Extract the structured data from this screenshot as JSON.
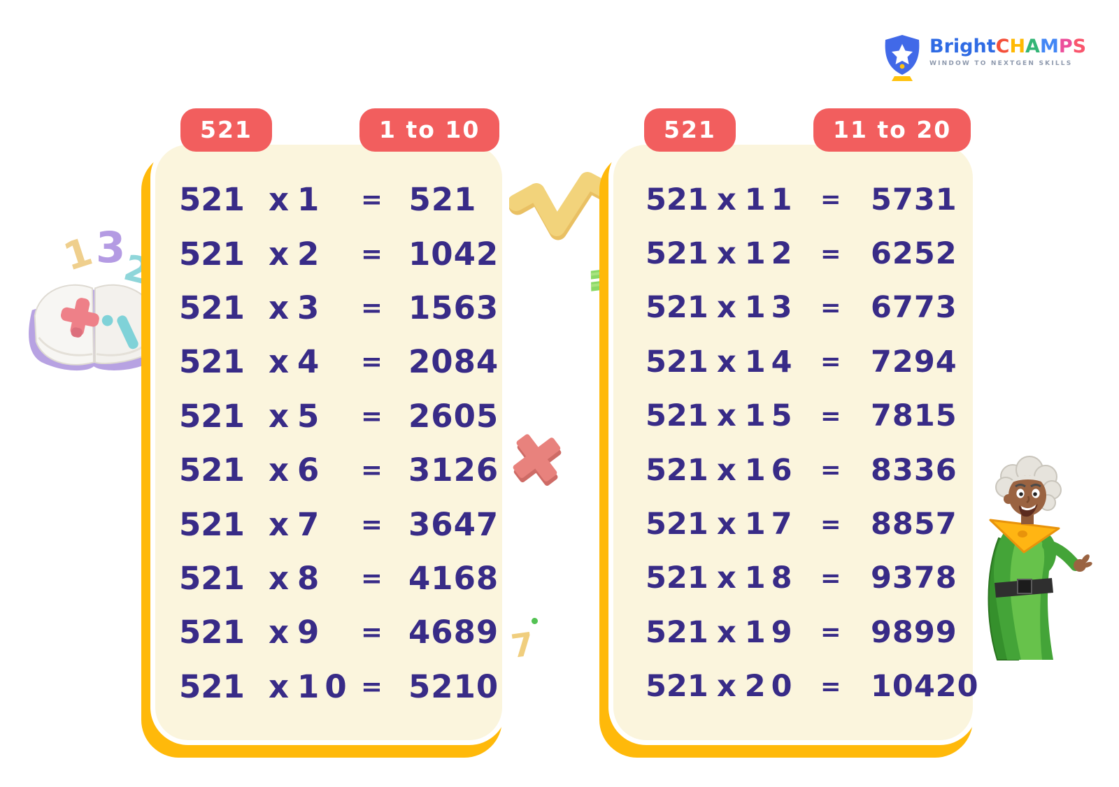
{
  "logo": {
    "brand_bright": "Bright",
    "champs": [
      {
        "ch": "C",
        "color": "#F4503A"
      },
      {
        "ch": "H",
        "color": "#FFB903"
      },
      {
        "ch": "A",
        "color": "#33B576"
      },
      {
        "ch": "M",
        "color": "#4286F5"
      },
      {
        "ch": "P",
        "color": "#EC4E9B"
      },
      {
        "ch": "S",
        "color": "#F9556D"
      }
    ],
    "tagline": "WINDOW TO NEXTGEN SKILLS",
    "icon_name": "trophy-shield-star-icon"
  },
  "cards": [
    {
      "number_badge": "521",
      "range_badge": "1 to 10",
      "rows": [
        {
          "m": "521",
          "op": "x",
          "n": "1",
          "eq": "=",
          "p": "521"
        },
        {
          "m": "521",
          "op": "x",
          "n": "2",
          "eq": "=",
          "p": "1042"
        },
        {
          "m": "521",
          "op": "x",
          "n": "3",
          "eq": "=",
          "p": "1563"
        },
        {
          "m": "521",
          "op": "x",
          "n": "4",
          "eq": "=",
          "p": "2084"
        },
        {
          "m": "521",
          "op": "x",
          "n": "5",
          "eq": "=",
          "p": "2605"
        },
        {
          "m": "521",
          "op": "x",
          "n": "6",
          "eq": "=",
          "p": "3126"
        },
        {
          "m": "521",
          "op": "x",
          "n": "7",
          "eq": "=",
          "p": "3647"
        },
        {
          "m": "521",
          "op": "x",
          "n": "8",
          "eq": "=",
          "p": "4168"
        },
        {
          "m": "521",
          "op": "x",
          "n": "9",
          "eq": "=",
          "p": "4689"
        },
        {
          "m": "521",
          "op": "x",
          "n": "10",
          "eq": "=",
          "p": "5210"
        }
      ]
    },
    {
      "number_badge": "521",
      "range_badge": "11 to 20",
      "rows": [
        {
          "m": "521",
          "op": "x",
          "n": "11",
          "eq": "=",
          "p": "5731"
        },
        {
          "m": "521",
          "op": "x",
          "n": "12",
          "eq": "=",
          "p": "6252"
        },
        {
          "m": "521",
          "op": "x",
          "n": "13",
          "eq": "=",
          "p": "6773"
        },
        {
          "m": "521",
          "op": "x",
          "n": "14",
          "eq": "=",
          "p": "7294"
        },
        {
          "m": "521",
          "op": "x",
          "n": "15",
          "eq": "=",
          "p": "7815"
        },
        {
          "m": "521",
          "op": "x",
          "n": "16",
          "eq": "=",
          "p": "8336"
        },
        {
          "m": "521",
          "op": "x",
          "n": "17",
          "eq": "=",
          "p": "8857"
        },
        {
          "m": "521",
          "op": "x",
          "n": "18",
          "eq": "=",
          "p": "9378"
        },
        {
          "m": "521",
          "op": "x",
          "n": "19",
          "eq": "=",
          "p": "9899"
        },
        {
          "m": "521",
          "op": "x",
          "n": "20",
          "eq": "=",
          "p": "10420"
        }
      ]
    }
  ],
  "decorations": {
    "digits": {
      "one": "1",
      "three": "3",
      "two": "2",
      "seven": "7"
    },
    "book": "open-math-book-with-plus-and-divide",
    "sqrt": "square-root-symbol",
    "equals": "green-equals-fragment",
    "cross": "multiplication-cross",
    "character": "waving-grandma-in-green-dress"
  },
  "colors": {
    "card_bg": "#FBF5DD",
    "card_shadow": "#FFB90A",
    "badge": "#F25E5E",
    "table_text": "#382B87"
  }
}
